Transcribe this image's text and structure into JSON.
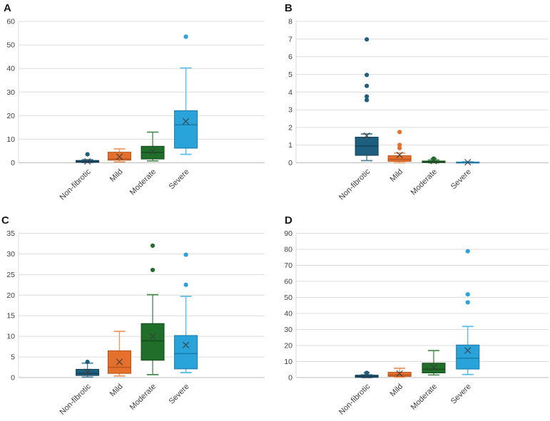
{
  "figure": {
    "background": "#ffffff"
  },
  "style": {
    "grid_color": "#dcdcdc",
    "zero_line_color": "#bdbdbd",
    "axis_line_color": "#d9d9d9",
    "tick_label_color": "#404040",
    "category_label_color": "#404040",
    "panel_label_color": "#1a1a1a",
    "mean_marker_color": "#3d3d3d"
  },
  "palette": {
    "navy": {
      "fill": "#1e5e7e",
      "edge": "#143f56",
      "whisker": "#4d819c"
    },
    "orange": {
      "fill": "#e5702c",
      "edge": "#b4541c",
      "whisker": "#ec9a66"
    },
    "green": {
      "fill": "#1f6e2a",
      "edge": "#14491c",
      "whisker": "#4d8f56"
    },
    "blue": {
      "fill": "#29a3da",
      "edge": "#1878a5",
      "whisker": "#5cbde6"
    }
  },
  "chart_data": [
    {
      "type": "box",
      "panel_label": "A",
      "categories": [
        "Non-fibrotic",
        "Mild",
        "Moderate",
        "Severe"
      ],
      "ylim": [
        0,
        60
      ],
      "ytick_step": 10,
      "grid": true,
      "boxes": [
        {
          "category": "Non-fibrotic",
          "color": "navy",
          "whislo": 0.1,
          "q1": 0.2,
          "med": 0.5,
          "q3": 1.0,
          "whishi": 1.3,
          "mean": 0.6,
          "outliers": [
            3.6
          ]
        },
        {
          "category": "Mild",
          "color": "orange",
          "whislo": 0.4,
          "q1": 1.1,
          "med": 1.6,
          "q3": 4.5,
          "whishi": 5.9,
          "mean": 2.6,
          "outliers": []
        },
        {
          "category": "Moderate",
          "color": "green",
          "whislo": 0.8,
          "q1": 1.6,
          "med": 4.4,
          "q3": 7.0,
          "whishi": 13.0,
          "mean": 4.8,
          "outliers": []
        },
        {
          "category": "Severe",
          "color": "blue",
          "whislo": 3.6,
          "q1": 6.2,
          "med": 16.1,
          "q3": 22.1,
          "whishi": 40.2,
          "mean": 17.6,
          "outliers": [
            53.5
          ]
        }
      ]
    },
    {
      "type": "box",
      "panel_label": "B",
      "categories": [
        "Non-fibrotic",
        "Mild",
        "Moderate",
        "Severe"
      ],
      "ylim": [
        0,
        8
      ],
      "ytick_step": 1,
      "grid": true,
      "boxes": [
        {
          "category": "Non-fibrotic",
          "color": "navy",
          "whislo": 0.12,
          "q1": 0.42,
          "med": 0.95,
          "q3": 1.45,
          "whishi": 1.63,
          "mean": 1.53,
          "outliers": [
            3.55,
            3.75,
            4.35,
            4.97,
            6.98
          ]
        },
        {
          "category": "Mild",
          "color": "orange",
          "whislo": 0.0,
          "q1": 0.08,
          "med": 0.2,
          "q3": 0.4,
          "whishi": 0.55,
          "mean": 0.44,
          "outliers": [
            0.83,
            1.01,
            1.74
          ]
        },
        {
          "category": "Moderate",
          "color": "green",
          "whislo": 0.0,
          "q1": 0.01,
          "med": 0.04,
          "q3": 0.1,
          "whishi": 0.16,
          "mean": 0.1,
          "outliers": [
            0.24
          ]
        },
        {
          "category": "Severe",
          "color": "blue",
          "whislo": 0.0,
          "q1": 0.0,
          "med": 0.01,
          "q3": 0.04,
          "whishi": 0.06,
          "mean": 0.03,
          "outliers": []
        }
      ]
    },
    {
      "type": "box",
      "panel_label": "C",
      "categories": [
        "Non-fibrotic",
        "Mild",
        "Moderate",
        "Severe"
      ],
      "ylim": [
        0,
        35
      ],
      "ytick_step": 5,
      "grid": true,
      "boxes": [
        {
          "category": "Non-fibrotic",
          "color": "navy",
          "whislo": 0.1,
          "q1": 0.5,
          "med": 1.0,
          "q3": 2.0,
          "whishi": 3.5,
          "mean": 1.4,
          "outliers": [
            3.8
          ]
        },
        {
          "category": "Mild",
          "color": "orange",
          "whislo": 0.4,
          "q1": 1.0,
          "med": 2.5,
          "q3": 6.5,
          "whishi": 11.2,
          "mean": 3.8,
          "outliers": []
        },
        {
          "category": "Moderate",
          "color": "green",
          "whislo": 0.7,
          "q1": 4.2,
          "med": 8.9,
          "q3": 13.1,
          "whishi": 20.1,
          "mean": 10.0,
          "outliers": [
            26.1,
            32.0
          ]
        },
        {
          "category": "Severe",
          "color": "blue",
          "whislo": 1.2,
          "q1": 2.1,
          "med": 5.8,
          "q3": 10.2,
          "whishi": 19.7,
          "mean": 7.9,
          "outliers": [
            22.5,
            29.8
          ]
        }
      ]
    },
    {
      "type": "box",
      "panel_label": "D",
      "categories": [
        "Non-fibrotic",
        "Mild",
        "Moderate",
        "Severe"
      ],
      "ylim": [
        0,
        90
      ],
      "ytick_step": 10,
      "grid": true,
      "boxes": [
        {
          "category": "Non-fibrotic",
          "color": "navy",
          "whislo": 0.0,
          "q1": 0.1,
          "med": 0.7,
          "q3": 1.5,
          "whishi": 1.7,
          "mean": 1.5,
          "outliers": [
            2.9
          ]
        },
        {
          "category": "Mild",
          "color": "orange",
          "whislo": 0.2,
          "q1": 0.7,
          "med": 1.6,
          "q3": 3.3,
          "whishi": 5.8,
          "mean": 2.5,
          "outliers": []
        },
        {
          "category": "Moderate",
          "color": "green",
          "whislo": 1.6,
          "q1": 2.9,
          "med": 5.2,
          "q3": 9.0,
          "whishi": 16.8,
          "mean": 6.4,
          "outliers": []
        },
        {
          "category": "Severe",
          "color": "blue",
          "whislo": 1.9,
          "q1": 5.3,
          "med": 12.1,
          "q3": 20.3,
          "whishi": 31.9,
          "mean": 16.9,
          "outliers": [
            46.9,
            51.9,
            78.8
          ]
        }
      ]
    }
  ]
}
